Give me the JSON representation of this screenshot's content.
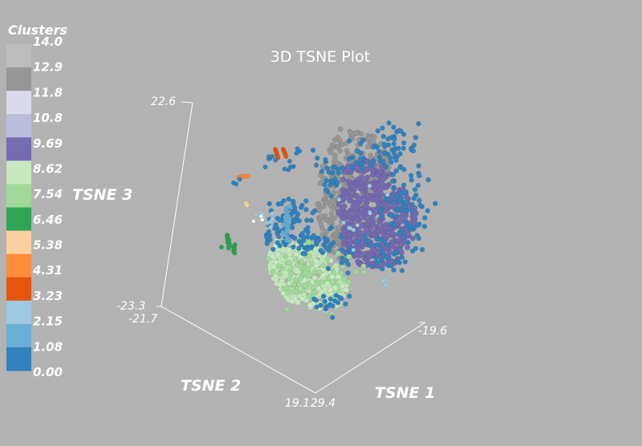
{
  "chart_data": {
    "type": "scatter",
    "title": "3D TSNE Plot",
    "legend": {
      "title": "Clusters",
      "ticks": [
        "14.0",
        "12.9",
        "11.8",
        "10.8",
        "9.69",
        "8.62",
        "7.54",
        "6.46",
        "5.38",
        "4.31",
        "3.23",
        "2.15",
        "1.08",
        "0.00"
      ],
      "colors": [
        "#bdbdbd",
        "#969696",
        "#dadaeb",
        "#bcbddc",
        "#756bb1",
        "#c7e9c0",
        "#a1d99b",
        "#31a354",
        "#fdd0a2",
        "#fd8d3c",
        "#e6550d",
        "#9ecae1",
        "#6baed6",
        "#3182bd"
      ]
    },
    "axes": {
      "x": {
        "label": "TSNE 1",
        "range": [
          -19.6,
          29.4
        ]
      },
      "y": {
        "label": "TSNE 2",
        "range": [
          -21.7,
          19.1
        ]
      },
      "z": {
        "label": "TSNE 3",
        "range": [
          -23.3,
          22.6
        ]
      },
      "tick_labels": {
        "z_max": "22.6",
        "z_min": "-23.3",
        "y_min": "-21.7",
        "y_max": "19.1",
        "x_max": "29.4",
        "x_min": "-19.6"
      }
    },
    "clusters": [
      {
        "value": 0,
        "color": "#3182bd"
      },
      {
        "value": 1,
        "color": "#6baed6"
      },
      {
        "value": 2,
        "color": "#9ecae1"
      },
      {
        "value": 3,
        "color": "#e6550d"
      },
      {
        "value": 4,
        "color": "#fd8d3c"
      },
      {
        "value": 5,
        "color": "#fdd0a2"
      },
      {
        "value": 6,
        "color": "#31a354"
      },
      {
        "value": 7,
        "color": "#a1d99b"
      },
      {
        "value": 8,
        "color": "#c7e9c0"
      },
      {
        "value": 9,
        "color": "#756bb1"
      },
      {
        "value": 10,
        "color": "#bcbddc"
      },
      {
        "value": 11,
        "color": "#dadaeb"
      },
      {
        "value": 12,
        "color": "#969696"
      }
    ]
  }
}
